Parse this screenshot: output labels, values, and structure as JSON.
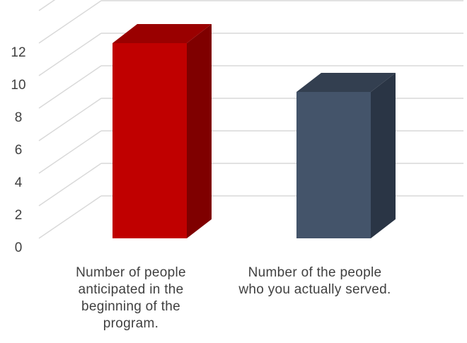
{
  "chart_data": {
    "type": "bar",
    "style": "3d-column",
    "categories": [
      "Number of people\nanticipated in the\nbeginning of the\nprogram.",
      "Number of the people\nwho you actually served."
    ],
    "values": [
      12,
      9
    ],
    "ylim": [
      0,
      12
    ],
    "yticks": [
      0,
      2,
      4,
      6,
      8,
      10,
      12
    ],
    "title": "",
    "xlabel": "",
    "ylabel": "",
    "grid": true,
    "legend": "none",
    "colors": {
      "bars": [
        "#c00000",
        "#44546a"
      ],
      "bar_sides": [
        "#7f0000",
        "#2a3545"
      ],
      "bar_tops": [
        "#9a0000",
        "#333f50"
      ],
      "grid": "#d9d9d9",
      "text": "#404040"
    }
  }
}
